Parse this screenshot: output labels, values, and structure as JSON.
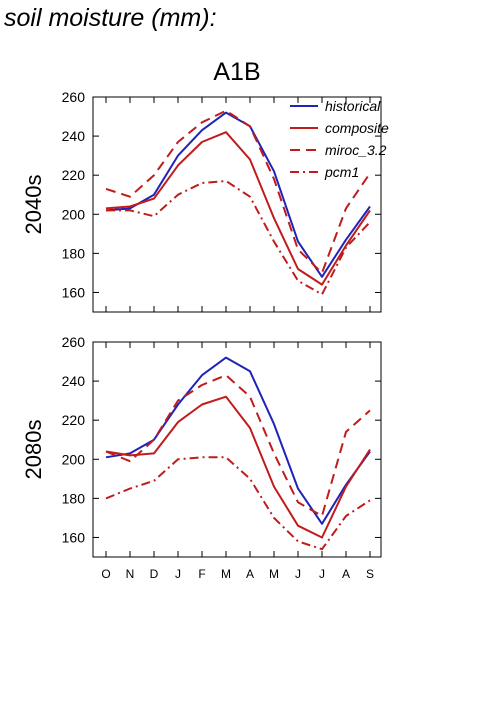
{
  "page": {
    "title": "soil moisture (mm):"
  },
  "colors": {
    "historical": "#1f24b8",
    "projection": "#c01c1c"
  },
  "chart_data": {
    "type": "line",
    "title": "A1B",
    "categories": [
      "O",
      "N",
      "D",
      "J",
      "F",
      "M",
      "A",
      "M",
      "J",
      "J",
      "A",
      "S"
    ],
    "ylim": [
      150,
      260
    ],
    "yticks": [
      160,
      180,
      200,
      220,
      240,
      260
    ],
    "grid": false,
    "legend": {
      "position": "top-right",
      "entries": [
        {
          "label": "historical",
          "style": "solid",
          "color": "#1f24b8"
        },
        {
          "label": "composite",
          "style": "solid",
          "color": "#c01c1c"
        },
        {
          "label": "miroc_3.2",
          "style": "dashed",
          "color": "#c01c1c"
        },
        {
          "label": "pcm1",
          "style": "dashdot",
          "color": "#c01c1c"
        }
      ]
    },
    "panels": [
      {
        "ylabel": "2040s",
        "series": [
          {
            "name": "historical",
            "style": "solid",
            "color": "#1f24b8",
            "values": [
              202,
              203,
              210,
              230,
              243,
              252,
              245,
              222,
              186,
              168,
              187,
              204
            ]
          },
          {
            "name": "composite",
            "style": "solid",
            "color": "#c01c1c",
            "values": [
              203,
              204,
              208,
              225,
              237,
              242,
              228,
              198,
              172,
              164,
              184,
              202
            ]
          },
          {
            "name": "miroc_3.2",
            "style": "dashed",
            "color": "#c01c1c",
            "values": [
              213,
              209,
              220,
              237,
              247,
              253,
              245,
              218,
              182,
              170,
              203,
              221
            ]
          },
          {
            "name": "pcm1",
            "style": "dashdot",
            "color": "#c01c1c",
            "values": [
              202,
              202,
              199,
              210,
              216,
              217,
              209,
              186,
              166,
              159,
              183,
              196
            ]
          }
        ]
      },
      {
        "ylabel": "2080s",
        "series": [
          {
            "name": "historical",
            "style": "solid",
            "color": "#1f24b8",
            "values": [
              201,
              203,
              210,
              228,
              243,
              252,
              245,
              218,
              185,
              167,
              187,
              204
            ]
          },
          {
            "name": "composite",
            "style": "solid",
            "color": "#c01c1c",
            "values": [
              204,
              202,
              203,
              219,
              228,
              232,
              216,
              186,
              166,
              160,
              186,
              205
            ]
          },
          {
            "name": "miroc_3.2",
            "style": "dashed",
            "color": "#c01c1c",
            "values": [
              204,
              199,
              210,
              230,
              238,
              243,
              232,
              203,
              178,
              171,
              214,
              225
            ]
          },
          {
            "name": "pcm1",
            "style": "dashdot",
            "color": "#c01c1c",
            "values": [
              180,
              185,
              189,
              200,
              201,
              201,
              190,
              170,
              158,
              154,
              171,
              179
            ]
          }
        ]
      }
    ]
  }
}
